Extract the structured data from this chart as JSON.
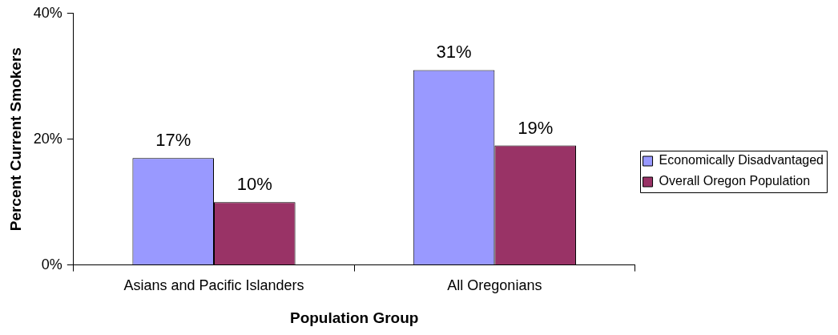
{
  "chart_data": {
    "type": "bar",
    "xlabel": "Population Group",
    "ylabel": "Percent Current Smokers",
    "categories": [
      "Asians and Pacific Islanders",
      "All Oregonians"
    ],
    "series": [
      {
        "name": "Economically Disadvantaged",
        "color": "#9999ff",
        "values": [
          17,
          31
        ],
        "value_labels": [
          "17%",
          "31%"
        ]
      },
      {
        "name": "Overall Oregon Population",
        "color": "#993366",
        "values": [
          10,
          19
        ],
        "value_labels": [
          "10%",
          "19%"
        ]
      }
    ],
    "ylim": [
      0,
      40
    ],
    "yticks": [
      {
        "value": 0,
        "label": "0%"
      },
      {
        "value": 20,
        "label": "20%"
      },
      {
        "value": 40,
        "label": "40%"
      }
    ],
    "grid": false,
    "legend": "right"
  }
}
